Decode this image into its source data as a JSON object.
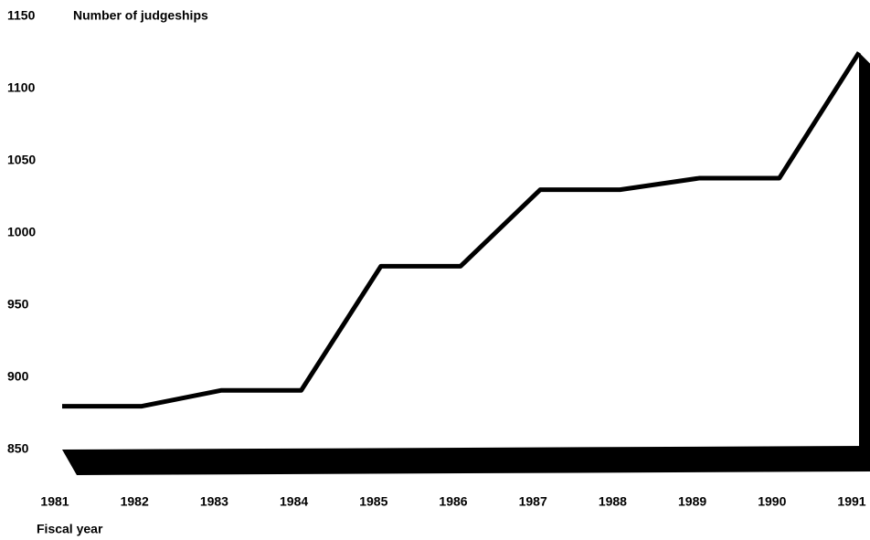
{
  "chart_data": {
    "type": "line",
    "title": "Number of judgeships",
    "x_label": "Fiscal year",
    "categories": [
      "1981",
      "1982",
      "1983",
      "1984",
      "1985",
      "1986",
      "1987",
      "1988",
      "1989",
      "1990",
      "1991"
    ],
    "series": [
      {
        "name": "Number of judgeships",
        "color": "#000000",
        "values": [
          880,
          880,
          891,
          891,
          977,
          977,
          1030,
          1030,
          1038,
          1038,
          1125
        ]
      }
    ],
    "ylim": [
      850,
      1150
    ],
    "yticks": [
      850,
      900,
      950,
      1000,
      1050,
      1100,
      1150
    ],
    "grid": false
  }
}
